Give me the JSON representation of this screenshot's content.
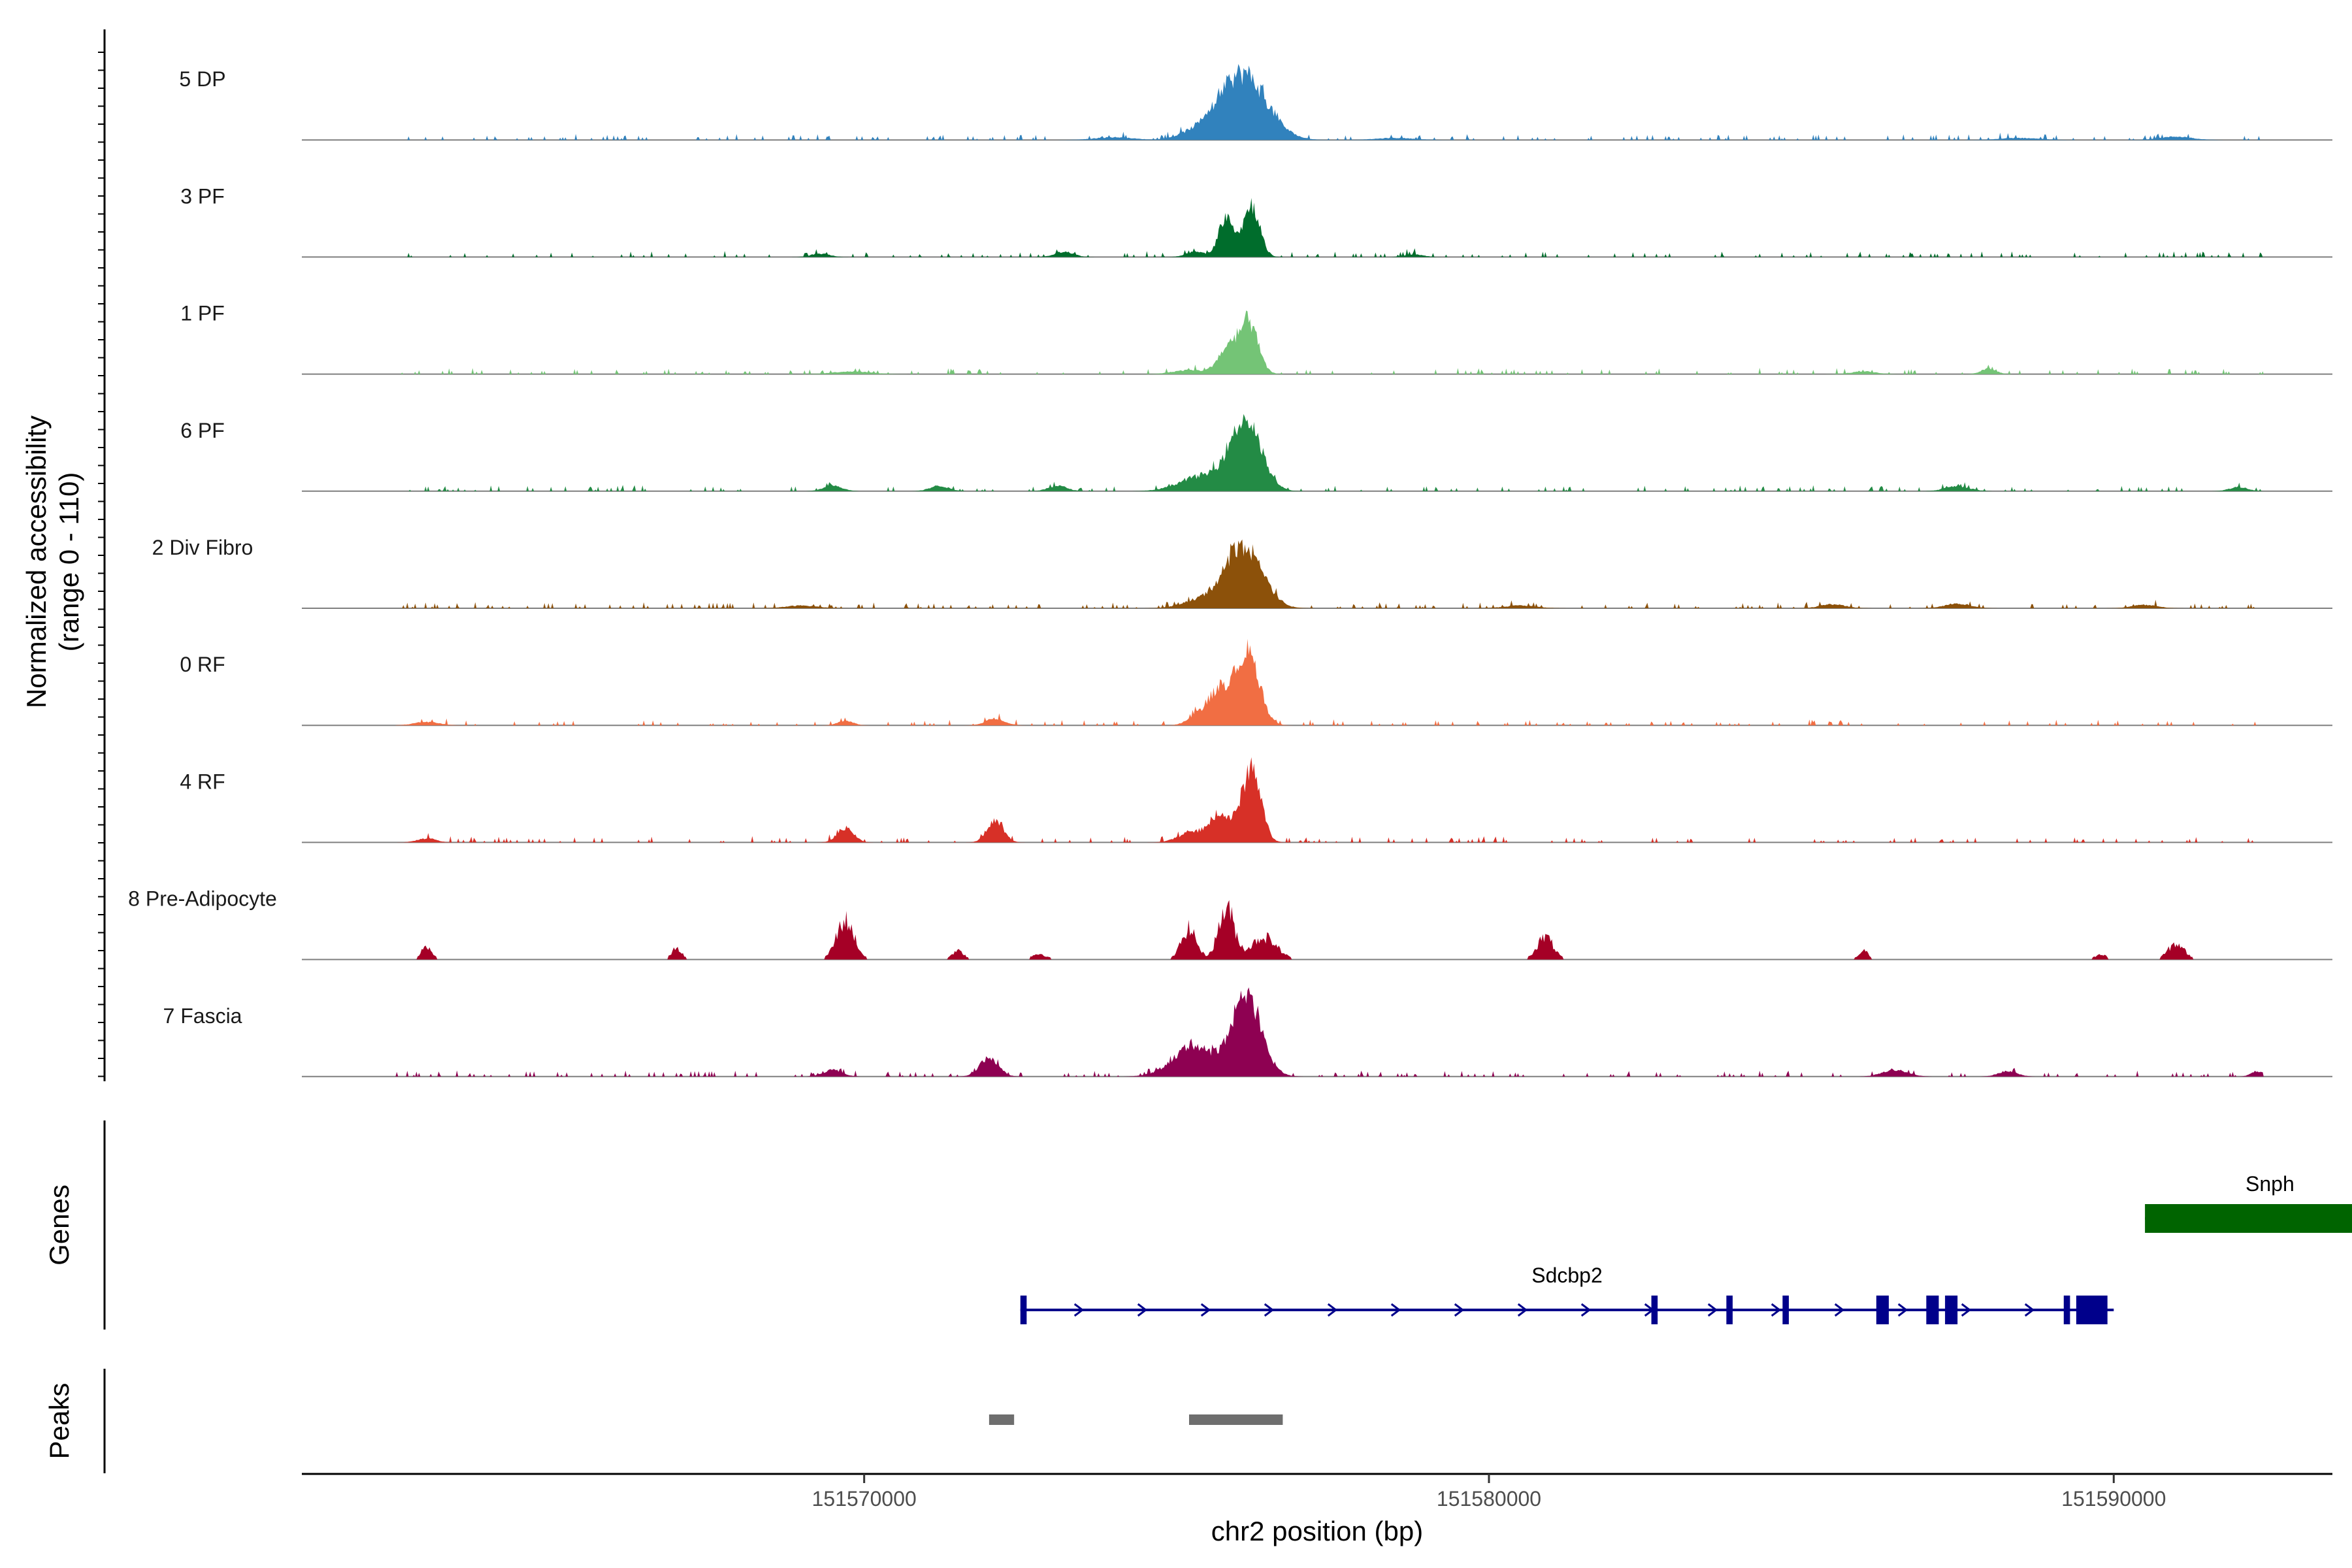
{
  "chart_data": {
    "type": "area",
    "title": "",
    "xlabel": "chr2 position (bp)",
    "ylabel_lines": [
      "Normalized accessibility",
      "(range 0 - 110)"
    ],
    "ylim": [
      0,
      110
    ],
    "xlim": [
      151561000,
      151593500
    ],
    "x_ticks": [
      151570000,
      151580000,
      151590000
    ],
    "x_tick_labels": [
      "151570000",
      "151580000",
      "151590000"
    ],
    "track_start": 151562500,
    "track_end": 151592400,
    "tracks": [
      {
        "name": "5 DP",
        "color": "#3182bd",
        "peaks": [
          [
            151576050,
            100,
            380
          ],
          [
            151575250,
            8,
            250
          ],
          [
            151574000,
            4,
            300
          ],
          [
            151578500,
            3,
            300
          ],
          [
            151588500,
            3,
            300
          ],
          [
            151591000,
            5,
            250
          ]
        ]
      },
      {
        "name": "3 PF",
        "color": "#006d2c",
        "peaks": [
          [
            151575800,
            62,
            120
          ],
          [
            151576200,
            78,
            130
          ],
          [
            151575300,
            8,
            150
          ],
          [
            151573200,
            8,
            150
          ],
          [
            151569300,
            5,
            150
          ],
          [
            151578800,
            4,
            150
          ]
        ]
      },
      {
        "name": "1 PF",
        "color": "#74c476",
        "peaks": [
          [
            151576150,
            78,
            150
          ],
          [
            151575800,
            35,
            150
          ],
          [
            151575200,
            6,
            250
          ],
          [
            151569800,
            4,
            300
          ],
          [
            151588000,
            8,
            120
          ],
          [
            151586000,
            4,
            200
          ]
        ]
      },
      {
        "name": "6 PF",
        "color": "#238b45",
        "peaks": [
          [
            151576100,
            105,
            250
          ],
          [
            151575400,
            22,
            350
          ],
          [
            151569500,
            8,
            150
          ],
          [
            151571200,
            8,
            150
          ],
          [
            151573100,
            8,
            150
          ],
          [
            151587500,
            7,
            200
          ],
          [
            151592000,
            6,
            150
          ]
        ]
      },
      {
        "name": "2 Div Fibro",
        "color": "#8c510a",
        "peaks": [
          [
            151576050,
            95,
            300
          ],
          [
            151575300,
            10,
            250
          ],
          [
            151585500,
            6,
            200
          ],
          [
            151587500,
            7,
            200
          ],
          [
            151590500,
            5,
            200
          ],
          [
            151569000,
            4,
            250
          ],
          [
            151580500,
            4,
            250
          ]
        ]
      },
      {
        "name": "0 RF",
        "color": "#f16e43",
        "peaks": [
          [
            151576150,
            105,
            180
          ],
          [
            151575700,
            55,
            200
          ],
          [
            151575300,
            10,
            150
          ],
          [
            151572100,
            10,
            150
          ],
          [
            151569700,
            7,
            120
          ],
          [
            151563000,
            5,
            200
          ]
        ]
      },
      {
        "name": "4 RF",
        "color": "#d73027",
        "peaks": [
          [
            151576200,
            110,
            150
          ],
          [
            151575700,
            40,
            200
          ],
          [
            151572100,
            32,
            130
          ],
          [
            151569700,
            22,
            130
          ],
          [
            151575200,
            12,
            200
          ],
          [
            151563000,
            6,
            150
          ]
        ]
      },
      {
        "name": "8 Pre-Adipocyte",
        "color": "#a50026",
        "peaks": [
          [
            151569700,
            70,
            140
          ],
          [
            151575800,
            90,
            130
          ],
          [
            151576400,
            40,
            200
          ],
          [
            151575200,
            55,
            120
          ],
          [
            151580900,
            40,
            130
          ],
          [
            151591000,
            28,
            130
          ],
          [
            151563000,
            25,
            80
          ],
          [
            151567000,
            20,
            80
          ],
          [
            151571500,
            15,
            100
          ],
          [
            151572800,
            10,
            120
          ],
          [
            151586000,
            15,
            80
          ],
          [
            151589800,
            8,
            100
          ]
        ]
      },
      {
        "name": "7 Fascia",
        "color": "#8e0152",
        "peaks": [
          [
            151576100,
            115,
            250
          ],
          [
            151575300,
            45,
            250
          ],
          [
            151572000,
            28,
            150
          ],
          [
            151574900,
            10,
            250
          ],
          [
            151569500,
            10,
            150
          ],
          [
            151586500,
            10,
            200
          ],
          [
            151592300,
            8,
            100
          ],
          [
            151588300,
            8,
            150
          ]
        ]
      }
    ],
    "genes": [
      {
        "name": "Snph",
        "color": "#006400",
        "start": 151590500,
        "end": 151594500,
        "strand": "-",
        "exons": [
          [
            151590500,
            151594500
          ]
        ]
      },
      {
        "name": "Sdcbp2",
        "color": "#00008b",
        "start": 151572500,
        "end": 151590000,
        "strand": "+",
        "exons": [
          [
            151572500,
            151572600
          ],
          [
            151582600,
            151582700
          ],
          [
            151583800,
            151583900
          ],
          [
            151584700,
            151584800
          ],
          [
            151586200,
            151586400
          ],
          [
            151587000,
            151587200
          ],
          [
            151587300,
            151587500
          ],
          [
            151589200,
            151589300
          ],
          [
            151589400,
            151589900
          ]
        ]
      }
    ],
    "peak_regions": [
      [
        151572000,
        151572400
      ],
      [
        151575200,
        151576700
      ]
    ],
    "panels": {
      "genes_title": "Genes",
      "peaks_title": "Peaks"
    }
  }
}
